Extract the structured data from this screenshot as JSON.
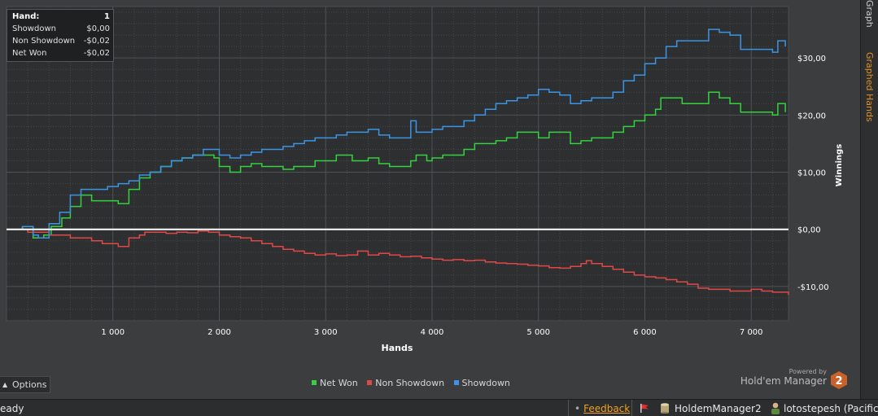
{
  "chart_data": {
    "type": "line",
    "xlabel": "Hands",
    "ylabel": "Winnings",
    "xlim": [
      0,
      7350
    ],
    "ylim": [
      -16,
      39
    ],
    "x_ticks": [
      {
        "value": 1000,
        "label": "1 000"
      },
      {
        "value": 2000,
        "label": "2 000"
      },
      {
        "value": 3000,
        "label": "3 000"
      },
      {
        "value": 4000,
        "label": "4 000"
      },
      {
        "value": 5000,
        "label": "5 000"
      },
      {
        "value": 6000,
        "label": "6 000"
      },
      {
        "value": 7000,
        "label": "7 000"
      }
    ],
    "y_ticks": [
      {
        "value": 30,
        "label": "$30,00"
      },
      {
        "value": 20,
        "label": "$20,00"
      },
      {
        "value": 10,
        "label": "$10,00"
      },
      {
        "value": 0,
        "label": "$0,00"
      },
      {
        "value": -10,
        "label": "-$10,00"
      }
    ],
    "grid": true,
    "legend_position": "bottom-center",
    "series": [
      {
        "name": "Net Won",
        "color": "#34d23c",
        "values": [
          [
            0,
            0
          ],
          [
            150,
            0.5
          ],
          [
            250,
            -1.5
          ],
          [
            350,
            -1
          ],
          [
            420,
            0.5
          ],
          [
            520,
            2
          ],
          [
            600,
            4
          ],
          [
            700,
            6
          ],
          [
            800,
            5
          ],
          [
            950,
            5
          ],
          [
            1050,
            4.5
          ],
          [
            1150,
            7
          ],
          [
            1250,
            9
          ],
          [
            1350,
            10
          ],
          [
            1450,
            11
          ],
          [
            1550,
            12
          ],
          [
            1650,
            12.5
          ],
          [
            1750,
            13
          ],
          [
            1850,
            13
          ],
          [
            1950,
            12.5
          ],
          [
            2000,
            11
          ],
          [
            2100,
            10
          ],
          [
            2200,
            11
          ],
          [
            2300,
            11.5
          ],
          [
            2400,
            11
          ],
          [
            2500,
            11
          ],
          [
            2600,
            10.5
          ],
          [
            2700,
            11
          ],
          [
            2800,
            11
          ],
          [
            2900,
            12
          ],
          [
            3000,
            12
          ],
          [
            3100,
            13
          ],
          [
            3150,
            13
          ],
          [
            3250,
            12
          ],
          [
            3300,
            12
          ],
          [
            3400,
            12.5
          ],
          [
            3500,
            11.5
          ],
          [
            3600,
            11
          ],
          [
            3700,
            11
          ],
          [
            3800,
            12
          ],
          [
            3850,
            13
          ],
          [
            3950,
            12
          ],
          [
            4000,
            12.5
          ],
          [
            4100,
            13
          ],
          [
            4200,
            13
          ],
          [
            4300,
            14
          ],
          [
            4400,
            15
          ],
          [
            4500,
            15
          ],
          [
            4600,
            15.5
          ],
          [
            4700,
            16
          ],
          [
            4800,
            17
          ],
          [
            4900,
            17
          ],
          [
            5000,
            16
          ],
          [
            5100,
            17
          ],
          [
            5200,
            17
          ],
          [
            5300,
            15
          ],
          [
            5400,
            15.5
          ],
          [
            5500,
            16
          ],
          [
            5600,
            16
          ],
          [
            5700,
            17
          ],
          [
            5800,
            18
          ],
          [
            5900,
            19
          ],
          [
            6000,
            20
          ],
          [
            6100,
            21
          ],
          [
            6150,
            23
          ],
          [
            6250,
            23
          ],
          [
            6350,
            22
          ],
          [
            6450,
            22
          ],
          [
            6550,
            22
          ],
          [
            6600,
            24
          ],
          [
            6700,
            23
          ],
          [
            6800,
            22
          ],
          [
            6900,
            20.5
          ],
          [
            7000,
            20.5
          ],
          [
            7100,
            20.5
          ],
          [
            7200,
            20
          ],
          [
            7250,
            22
          ],
          [
            7320,
            20.5
          ]
        ]
      },
      {
        "name": "Non Showdown",
        "color": "#e04848",
        "values": [
          [
            0,
            0
          ],
          [
            200,
            -0.5
          ],
          [
            400,
            -1
          ],
          [
            600,
            -1.5
          ],
          [
            800,
            -2
          ],
          [
            900,
            -2.5
          ],
          [
            1050,
            -3
          ],
          [
            1150,
            -1.5
          ],
          [
            1250,
            -1
          ],
          [
            1300,
            -0.5
          ],
          [
            1400,
            -0.5
          ],
          [
            1500,
            -0.7
          ],
          [
            1600,
            -0.5
          ],
          [
            1700,
            -0.6
          ],
          [
            1800,
            -0.3
          ],
          [
            1900,
            -0.5
          ],
          [
            2000,
            -1
          ],
          [
            2100,
            -1.3
          ],
          [
            2200,
            -1.5
          ],
          [
            2300,
            -2
          ],
          [
            2400,
            -2.5
          ],
          [
            2500,
            -3
          ],
          [
            2600,
            -3.5
          ],
          [
            2700,
            -3.8
          ],
          [
            2800,
            -4.2
          ],
          [
            2900,
            -4.5
          ],
          [
            3000,
            -4.3
          ],
          [
            3100,
            -4.6
          ],
          [
            3200,
            -4.5
          ],
          [
            3300,
            -3.8
          ],
          [
            3400,
            -4.5
          ],
          [
            3500,
            -4.2
          ],
          [
            3600,
            -4.5
          ],
          [
            3700,
            -4.8
          ],
          [
            3800,
            -4.7
          ],
          [
            3900,
            -5
          ],
          [
            4000,
            -5.2
          ],
          [
            4100,
            -5.4
          ],
          [
            4200,
            -5.3
          ],
          [
            4300,
            -5.5
          ],
          [
            4400,
            -5.4
          ],
          [
            4500,
            -5.7
          ],
          [
            4600,
            -5.9
          ],
          [
            4700,
            -6
          ],
          [
            4800,
            -6.1
          ],
          [
            4900,
            -6.3
          ],
          [
            5000,
            -6.4
          ],
          [
            5100,
            -6.7
          ],
          [
            5200,
            -6.8
          ],
          [
            5300,
            -6.5
          ],
          [
            5400,
            -6
          ],
          [
            5450,
            -5.5
          ],
          [
            5500,
            -6
          ],
          [
            5600,
            -6.5
          ],
          [
            5700,
            -7
          ],
          [
            5800,
            -7.5
          ],
          [
            5900,
            -8
          ],
          [
            6000,
            -8.3
          ],
          [
            6100,
            -8.5
          ],
          [
            6200,
            -8.8
          ],
          [
            6300,
            -9.2
          ],
          [
            6400,
            -9.6
          ],
          [
            6500,
            -10.3
          ],
          [
            6600,
            -10.5
          ],
          [
            6700,
            -10.5
          ],
          [
            6800,
            -10.8
          ],
          [
            6900,
            -10.8
          ],
          [
            7000,
            -10.5
          ],
          [
            7100,
            -10.8
          ],
          [
            7200,
            -11
          ],
          [
            7300,
            -11
          ],
          [
            7350,
            -11.5
          ]
        ]
      },
      {
        "name": "Showdown",
        "color": "#3c94e4",
        "values": [
          [
            0,
            0
          ],
          [
            150,
            0.5
          ],
          [
            250,
            -1
          ],
          [
            300,
            -1.5
          ],
          [
            400,
            1
          ],
          [
            500,
            3
          ],
          [
            600,
            6
          ],
          [
            700,
            7
          ],
          [
            800,
            7
          ],
          [
            950,
            7.5
          ],
          [
            1050,
            8
          ],
          [
            1150,
            8.5
          ],
          [
            1250,
            9.5
          ],
          [
            1350,
            10
          ],
          [
            1450,
            11
          ],
          [
            1550,
            12
          ],
          [
            1650,
            12.5
          ],
          [
            1750,
            13
          ],
          [
            1850,
            14
          ],
          [
            1950,
            14
          ],
          [
            2000,
            13
          ],
          [
            2100,
            12.5
          ],
          [
            2200,
            13
          ],
          [
            2300,
            13.5
          ],
          [
            2400,
            14
          ],
          [
            2500,
            14
          ],
          [
            2600,
            14.5
          ],
          [
            2700,
            15
          ],
          [
            2800,
            15.5
          ],
          [
            2900,
            16
          ],
          [
            3000,
            16
          ],
          [
            3100,
            16.5
          ],
          [
            3200,
            17
          ],
          [
            3300,
            17
          ],
          [
            3400,
            17.5
          ],
          [
            3500,
            16.5
          ],
          [
            3600,
            16
          ],
          [
            3700,
            16
          ],
          [
            3800,
            19
          ],
          [
            3850,
            17
          ],
          [
            3950,
            17
          ],
          [
            4000,
            17.5
          ],
          [
            4100,
            18
          ],
          [
            4200,
            18
          ],
          [
            4300,
            19
          ],
          [
            4400,
            20
          ],
          [
            4500,
            21
          ],
          [
            4600,
            22
          ],
          [
            4700,
            22.5
          ],
          [
            4800,
            23
          ],
          [
            4900,
            23.5
          ],
          [
            5000,
            24.5
          ],
          [
            5100,
            24
          ],
          [
            5200,
            23.5
          ],
          [
            5300,
            22
          ],
          [
            5400,
            22.5
          ],
          [
            5500,
            23
          ],
          [
            5600,
            23
          ],
          [
            5700,
            24
          ],
          [
            5800,
            26
          ],
          [
            5900,
            27
          ],
          [
            6000,
            29
          ],
          [
            6100,
            30
          ],
          [
            6200,
            32
          ],
          [
            6300,
            33
          ],
          [
            6400,
            33
          ],
          [
            6500,
            33
          ],
          [
            6600,
            35
          ],
          [
            6700,
            34.5
          ],
          [
            6800,
            34
          ],
          [
            6900,
            31.5
          ],
          [
            7000,
            31.5
          ],
          [
            7100,
            31.5
          ],
          [
            7200,
            31
          ],
          [
            7250,
            33
          ],
          [
            7320,
            32
          ]
        ]
      }
    ]
  },
  "tooltip": {
    "header_label": "Hand:",
    "header_value": "1",
    "rows": [
      {
        "label": "Showdown",
        "value": "$0,00"
      },
      {
        "label": "Non Showdown",
        "value": "-$0,02"
      },
      {
        "label": "Net Won",
        "value": "-$0,02"
      }
    ]
  },
  "sidebar": {
    "tabs": [
      {
        "label": "Graph"
      },
      {
        "label": "Graphed Hands",
        "accent": "#e5901f"
      }
    ]
  },
  "options_label": "Options",
  "branding": {
    "powered_by": "Powered by",
    "name": "Hold'em Manager",
    "logo_number": "2",
    "logo_color": "#c8622a"
  },
  "statusbar": {
    "status_text": "eady",
    "feedback_label": "Feedback",
    "db_label": "HoldemManager2",
    "user_label": "lotostepesh (Pacific)"
  },
  "colors": {
    "plot_bg": "#2d2f31",
    "grid": "#44474a",
    "zero_line": "#ffffff",
    "feedback_link": "#f0a020"
  }
}
